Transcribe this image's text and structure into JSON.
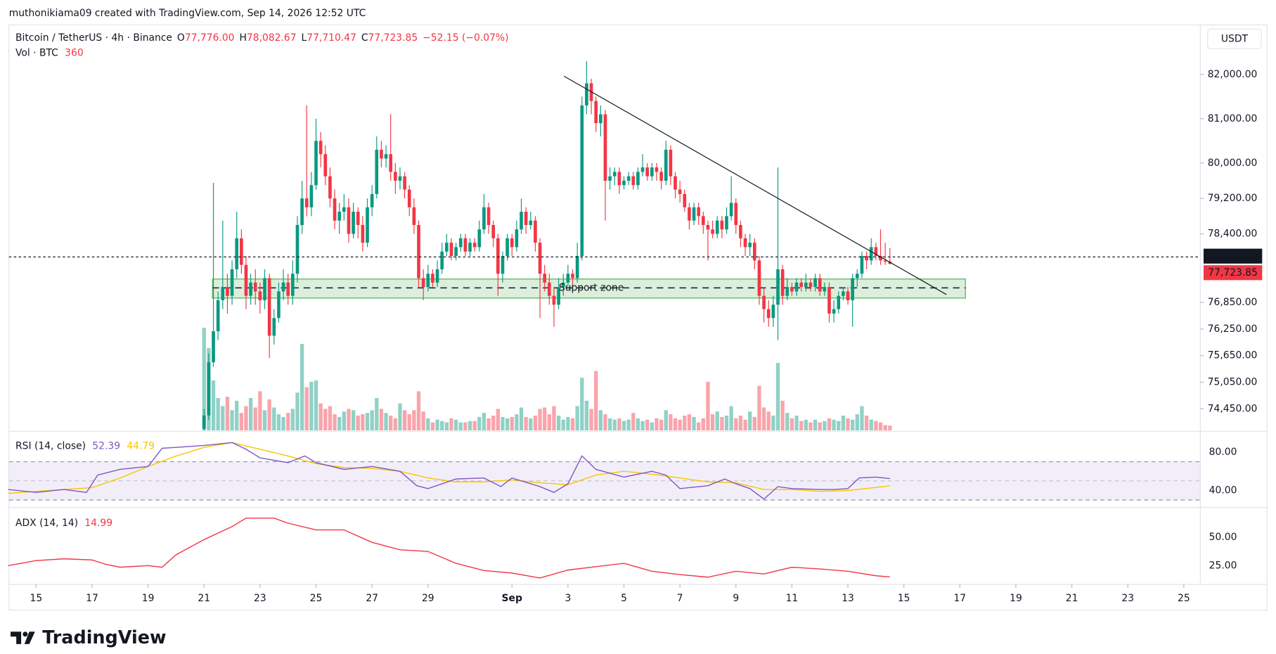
{
  "chart_data": {
    "type": "candlestick",
    "header": "muthonikiama09 created with TradingView.com, Sep 14, 2026 12:52 UTC",
    "legend": {
      "symbol": "Bitcoin / TetherUS · 4h · Binance",
      "fields": [
        [
          "O",
          "77,776.00"
        ],
        [
          "H",
          "78,082.67"
        ],
        [
          "L",
          "77,710.47"
        ],
        [
          "C",
          "77,723.85"
        ]
      ],
      "change": "−52.15 (−0.07%)"
    },
    "volume_title": "Vol · BTC",
    "currency": "USDT",
    "logo": "TradingView",
    "up_color": "#089981",
    "down_color": "#f23645",
    "start_day": 21,
    "interval_hours": 4,
    "xlim": [
      14.03,
      56.59
    ],
    "xticks": [
      15,
      17,
      19,
      21,
      23,
      25,
      27,
      29,
      {
        "value": 32,
        "label": "Sep"
      },
      {
        "value": 34,
        "label": "3"
      },
      {
        "value": 36,
        "label": "5"
      },
      {
        "value": 38,
        "label": "7"
      },
      {
        "value": 40,
        "label": "9"
      },
      {
        "value": 42,
        "label": "11"
      },
      {
        "value": 44,
        "label": "13"
      },
      {
        "value": 46,
        "label": "15"
      },
      {
        "value": 48,
        "label": "17"
      },
      {
        "value": 50,
        "label": "19"
      },
      {
        "value": 52,
        "label": "21"
      },
      {
        "value": 54,
        "label": "23"
      },
      {
        "value": 56,
        "label": "25"
      }
    ],
    "ylim": [
      73960,
      83120
    ],
    "yticks": [
      {
        "value": 82000,
        "label": "82,000.00"
      },
      {
        "value": 81000,
        "label": "81,000.00"
      },
      {
        "value": 80000,
        "label": "80,000.00"
      },
      {
        "value": 79200,
        "label": "79,200.00"
      },
      {
        "value": 78400,
        "label": "78,400.00"
      },
      {
        "value": 76850,
        "label": "76,850.00"
      },
      {
        "value": 76250,
        "label": "76,250.00"
      },
      {
        "value": 75650,
        "label": "75,650.00"
      },
      {
        "value": 75050,
        "label": "75,050.00"
      },
      {
        "value": 74450,
        "label": "74,450.00"
      }
    ],
    "price_line": {
      "value": 77878.47,
      "label": "77,878.47"
    },
    "last_price_label": "77,723.85",
    "candles": [
      [
        74000,
        74450,
        73960,
        74300
      ],
      [
        74300,
        75700,
        74200,
        75500
      ],
      [
        75500,
        79550,
        75400,
        76200
      ],
      [
        76200,
        77100,
        76000,
        76900
      ],
      [
        76900,
        78700,
        76700,
        77200
      ],
      [
        77200,
        77500,
        76600,
        77000
      ],
      [
        77000,
        77800,
        76800,
        77600
      ],
      [
        77600,
        78900,
        77400,
        78300
      ],
      [
        78300,
        78500,
        77500,
        77700
      ],
      [
        77700,
        77900,
        76700,
        77000
      ],
      [
        77000,
        77500,
        76800,
        77300
      ],
      [
        77300,
        77600,
        76800,
        77100
      ],
      [
        77100,
        77300,
        76600,
        76900
      ],
      [
        76900,
        77600,
        76700,
        77400
      ],
      [
        77400,
        77500,
        75600,
        76100
      ],
      [
        76100,
        76700,
        75900,
        76500
      ],
      [
        76500,
        77300,
        76400,
        77100
      ],
      [
        77100,
        77600,
        76900,
        77300
      ],
      [
        77300,
        77500,
        76800,
        77000
      ],
      [
        77000,
        77800,
        76800,
        77500
      ],
      [
        77500,
        78800,
        77300,
        78600
      ],
      [
        78600,
        79600,
        78400,
        79200
      ],
      [
        79200,
        81300,
        78800,
        79000
      ],
      [
        79000,
        79800,
        78800,
        79500
      ],
      [
        79500,
        81000,
        79400,
        80500
      ],
      [
        80500,
        80700,
        79900,
        80200
      ],
      [
        80200,
        80400,
        79500,
        79700
      ],
      [
        79700,
        79900,
        79000,
        79200
      ],
      [
        79200,
        79400,
        78500,
        78700
      ],
      [
        78700,
        79100,
        78400,
        78900
      ],
      [
        78900,
        79300,
        78700,
        79000
      ],
      [
        79000,
        79200,
        78200,
        78400
      ],
      [
        78400,
        79100,
        78300,
        78900
      ],
      [
        78900,
        79000,
        78300,
        78600
      ],
      [
        78600,
        78800,
        78000,
        78200
      ],
      [
        78200,
        79200,
        78100,
        79000
      ],
      [
        79000,
        79500,
        78800,
        79300
      ],
      [
        79300,
        80600,
        79200,
        80300
      ],
      [
        80300,
        80500,
        79900,
        80100
      ],
      [
        80100,
        80400,
        79900,
        80200
      ],
      [
        80200,
        81100,
        79600,
        79800
      ],
      [
        79800,
        80000,
        79300,
        79600
      ],
      [
        79600,
        79900,
        79400,
        79700
      ],
      [
        79700,
        79800,
        79200,
        79400
      ],
      [
        79400,
        79500,
        78800,
        79000
      ],
      [
        79000,
        79200,
        78400,
        78600
      ],
      [
        78600,
        78700,
        77200,
        77400
      ],
      [
        77400,
        77600,
        76900,
        77200
      ],
      [
        77200,
        77700,
        77100,
        77500
      ],
      [
        77500,
        77600,
        77200,
        77300
      ],
      [
        77300,
        77800,
        77200,
        77600
      ],
      [
        77600,
        78200,
        77500,
        78000
      ],
      [
        78000,
        78400,
        77900,
        78200
      ],
      [
        78200,
        78300,
        77800,
        77900
      ],
      [
        77900,
        78200,
        77800,
        78100
      ],
      [
        78100,
        78400,
        78000,
        78300
      ],
      [
        78300,
        78400,
        77900,
        78000
      ],
      [
        78000,
        78300,
        77900,
        78200
      ],
      [
        78200,
        78300,
        78000,
        78100
      ],
      [
        78100,
        78700,
        78000,
        78500
      ],
      [
        78500,
        79300,
        78400,
        79000
      ],
      [
        79000,
        79100,
        78400,
        78600
      ],
      [
        78600,
        78700,
        78100,
        78300
      ],
      [
        78300,
        78400,
        77000,
        77500
      ],
      [
        77500,
        78000,
        77300,
        77900
      ],
      [
        77900,
        78400,
        77800,
        78300
      ],
      [
        78300,
        78400,
        77900,
        78100
      ],
      [
        78100,
        78700,
        78000,
        78500
      ],
      [
        78500,
        79200,
        78400,
        78900
      ],
      [
        78900,
        79000,
        78400,
        78600
      ],
      [
        78600,
        78900,
        78500,
        78700
      ],
      [
        78700,
        78800,
        78000,
        78200
      ],
      [
        78200,
        78300,
        76500,
        77500
      ],
      [
        77500,
        77700,
        77100,
        77300
      ],
      [
        77300,
        77500,
        76800,
        77000
      ],
      [
        77000,
        77200,
        76300,
        76800
      ],
      [
        76800,
        77400,
        76700,
        77200
      ],
      [
        77200,
        77500,
        77000,
        77300
      ],
      [
        77300,
        77700,
        77200,
        77500
      ],
      [
        77500,
        77600,
        77200,
        77400
      ],
      [
        77400,
        78200,
        77300,
        77900
      ],
      [
        77900,
        81500,
        77800,
        81300
      ],
      [
        81300,
        82300,
        81100,
        81800
      ],
      [
        81800,
        81900,
        81100,
        81400
      ],
      [
        81400,
        81500,
        80700,
        80900
      ],
      [
        80900,
        81300,
        80600,
        81100
      ],
      [
        81100,
        81200,
        78700,
        79600
      ],
      [
        79600,
        79900,
        79400,
        79700
      ],
      [
        79700,
        79900,
        79500,
        79800
      ],
      [
        79800,
        79900,
        79300,
        79500
      ],
      [
        79500,
        79700,
        79400,
        79600
      ],
      [
        79600,
        79800,
        79500,
        79700
      ],
      [
        79700,
        79800,
        79400,
        79500
      ],
      [
        79500,
        79900,
        79400,
        79800
      ],
      [
        79800,
        80200,
        79700,
        79900
      ],
      [
        79900,
        80000,
        79600,
        79700
      ],
      [
        79700,
        80000,
        79600,
        79900
      ],
      [
        79900,
        80000,
        79600,
        79800
      ],
      [
        79800,
        79900,
        79400,
        79600
      ],
      [
        79600,
        80500,
        79500,
        80300
      ],
      [
        80300,
        80400,
        79500,
        79700
      ],
      [
        79700,
        79800,
        79200,
        79400
      ],
      [
        79400,
        79600,
        79100,
        79300
      ],
      [
        79300,
        79400,
        78900,
        79000
      ],
      [
        79000,
        79100,
        78500,
        78700
      ],
      [
        78700,
        79100,
        78600,
        79000
      ],
      [
        79000,
        79100,
        78600,
        78800
      ],
      [
        78800,
        78900,
        78400,
        78600
      ],
      [
        78600,
        78700,
        77800,
        78500
      ],
      [
        78500,
        78700,
        78300,
        78400
      ],
      [
        78400,
        78800,
        78300,
        78700
      ],
      [
        78700,
        78800,
        78300,
        78500
      ],
      [
        78500,
        79000,
        78400,
        78800
      ],
      [
        78800,
        79700,
        78700,
        79100
      ],
      [
        79100,
        79200,
        78400,
        78600
      ],
      [
        78600,
        78700,
        78100,
        78300
      ],
      [
        78300,
        78400,
        77900,
        78100
      ],
      [
        78100,
        78400,
        77900,
        78200
      ],
      [
        78200,
        78300,
        77600,
        77800
      ],
      [
        77800,
        77900,
        76800,
        77000
      ],
      [
        77000,
        77200,
        76400,
        76700
      ],
      [
        76700,
        76900,
        76300,
        76500
      ],
      [
        76500,
        77000,
        76300,
        76800
      ],
      [
        76800,
        79900,
        76000,
        77600
      ],
      [
        77600,
        77700,
        76800,
        77000
      ],
      [
        77000,
        77400,
        76900,
        77200
      ],
      [
        77200,
        77300,
        77000,
        77100
      ],
      [
        77100,
        77400,
        77000,
        77300
      ],
      [
        77300,
        77400,
        77100,
        77200
      ],
      [
        77200,
        77500,
        77100,
        77300
      ],
      [
        77300,
        77400,
        77100,
        77200
      ],
      [
        77200,
        77500,
        77100,
        77400
      ],
      [
        77400,
        77500,
        77000,
        77100
      ],
      [
        77100,
        77300,
        77000,
        77200
      ],
      [
        77200,
        77300,
        76400,
        76600
      ],
      [
        76600,
        76900,
        76400,
        76700
      ],
      [
        76700,
        77100,
        76600,
        77000
      ],
      [
        77000,
        77200,
        76900,
        77100
      ],
      [
        77100,
        77200,
        76800,
        76900
      ],
      [
        76900,
        77500,
        76300,
        77400
      ],
      [
        77400,
        77600,
        77200,
        77500
      ],
      [
        77500,
        78000,
        77400,
        77900
      ],
      [
        77900,
        78000,
        77600,
        77800
      ],
      [
        77800,
        78300,
        77700,
        78100
      ],
      [
        78100,
        78200,
        77800,
        77900
      ],
      [
        77900,
        78500,
        77700,
        77800
      ],
      [
        77800,
        78200,
        77700,
        77776
      ],
      [
        77776,
        78082.67,
        77710.47,
        77723.85
      ]
    ],
    "vol_lim": [
      0,
      30000
    ],
    "volume": [
      7600,
      6100,
      3700,
      2400,
      1800,
      2500,
      1500,
      2200,
      1300,
      1800,
      2400,
      1700,
      2900,
      1500,
      2300,
      1700,
      1200,
      1000,
      1300,
      1600,
      2800,
      6400,
      3200,
      3600,
      3700,
      2000,
      1600,
      1800,
      1200,
      1000,
      1400,
      1600,
      1500,
      1100,
      1200,
      1300,
      1500,
      2400,
      1600,
      1300,
      1100,
      900,
      2000,
      1500,
      1200,
      1500,
      2900,
      1400,
      900,
      600,
      800,
      700,
      600,
      900,
      800,
      600,
      600,
      700,
      700,
      1000,
      1300,
      900,
      1100,
      1600,
      1000,
      900,
      1000,
      1200,
      1700,
      1000,
      900,
      1100,
      1600,
      1700,
      1200,
      1800,
      1100,
      800,
      1000,
      900,
      1800,
      3900,
      2200,
      1600,
      4400,
      1500,
      1200,
      900,
      800,
      900,
      700,
      800,
      1300,
      900,
      700,
      800,
      600,
      900,
      800,
      1500,
      1200,
      900,
      800,
      1100,
      1200,
      1000,
      600,
      900,
      3600,
      1200,
      1400,
      1000,
      1100,
      1800,
      900,
      1100,
      800,
      1400,
      1000,
      3300,
      1700,
      1400,
      1100,
      5000,
      2200,
      1300,
      900,
      1100,
      700,
      800,
      600,
      800,
      600,
      700,
      900,
      800,
      700,
      1100,
      900,
      800,
      1200,
      1800,
      1100,
      800,
      700,
      600,
      400,
      360
    ],
    "support_zone": {
      "label": "Support zone",
      "x": [
        21.3,
        48.2
      ],
      "y": [
        76950,
        77380
      ],
      "mid": 77180
    },
    "trendline": {
      "x": [
        33.86,
        47.52
      ],
      "y": [
        81960,
        77030
      ]
    },
    "rsi_title": "RSI (14, close)",
    "rsi_ylim": [
      24,
      100
    ],
    "rsi_yticks": [
      {
        "value": 80,
        "label": "80.00"
      },
      {
        "value": 40,
        "label": "40.00"
      }
    ],
    "rsi_bands": [
      30,
      50,
      70
    ],
    "rsi": {
      "color": "#7e57c2",
      "x": [
        14,
        15,
        16,
        16.8,
        17.2,
        18,
        19,
        19.5,
        20,
        21,
        22,
        22.5,
        23,
        24,
        24.6,
        25,
        26,
        27,
        28,
        28.6,
        29,
        30,
        31,
        31.6,
        32,
        33,
        33.5,
        34,
        34.5,
        35,
        36,
        37,
        37.5,
        38,
        39,
        39.6,
        40,
        40.5,
        41,
        41.5,
        42,
        43,
        43.5,
        44,
        44.4,
        45,
        45.5
      ],
      "values": [
        41,
        38,
        41,
        38,
        56,
        62,
        65,
        84,
        85,
        87,
        90,
        83,
        74,
        69,
        76,
        69,
        62,
        65,
        60,
        45,
        42,
        52,
        53,
        44,
        53,
        44,
        38,
        47,
        76,
        62,
        54,
        60,
        56,
        42,
        45,
        52,
        47,
        42,
        31,
        44,
        42,
        41,
        41,
        42,
        53,
        54,
        52.39
      ]
    },
    "rsi_ma": {
      "color": "#f7c600",
      "x": [
        14,
        16,
        17,
        18,
        19,
        20,
        21,
        22,
        23,
        24,
        25,
        26,
        27,
        28,
        29,
        30,
        31,
        32,
        33,
        34,
        35,
        36,
        37,
        38,
        39,
        40,
        41,
        42,
        43,
        44,
        45.5
      ],
      "values": [
        37,
        41,
        43,
        53,
        65,
        76,
        85,
        90,
        83,
        76,
        68,
        64,
        63,
        60,
        53,
        49,
        49,
        51,
        48,
        46,
        56,
        60,
        57,
        53,
        49,
        48,
        41,
        41,
        39,
        40,
        44.79
      ]
    },
    "adx_title": "ADX (14, 14)",
    "adx_ylim": [
      9,
      75
    ],
    "adx_yticks": [
      {
        "value": 50,
        "label": "50.00"
      },
      {
        "value": 25,
        "label": "25.00"
      }
    ],
    "adx": {
      "color": "#f23645",
      "x": [
        14,
        15,
        16,
        17,
        17.5,
        18,
        19,
        19.5,
        20,
        21,
        22,
        22.5,
        23.5,
        24,
        25,
        26,
        27,
        28,
        29,
        30,
        31,
        32,
        33,
        34,
        35,
        36,
        37,
        38,
        39,
        40,
        41,
        42,
        43,
        44,
        45,
        45.5
      ],
      "values": [
        25,
        29.4,
        31,
        30,
        26,
        23.5,
        25,
        23.5,
        34.6,
        48,
        59.6,
        67,
        67,
        62.5,
        56.6,
        56.6,
        45.6,
        39,
        37.5,
        27,
        20.6,
        18.4,
        14,
        21,
        24,
        27,
        20,
        17,
        14.7,
        20,
        17.6,
        23.5,
        22,
        20,
        16,
        14.99
      ]
    }
  }
}
